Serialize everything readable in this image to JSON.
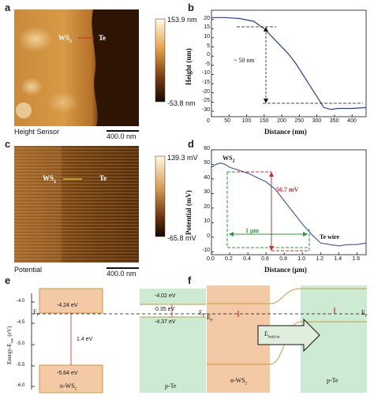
{
  "panels": {
    "a": {
      "letter": "a",
      "material_left": "WS",
      "material_left_sub": "2",
      "material_right": "Te",
      "mode_label": "Height Sensor",
      "scale_bar": "400.0 nm",
      "colorbar_max": "153.9 nm",
      "colorbar_min": "-53.8 nm"
    },
    "b": {
      "letter": "b",
      "ylabel": "Height (nm)",
      "xlabel": "Distance (nm)",
      "annotation": "~ 50 nm",
      "xticks": [
        "0",
        "50",
        "100",
        "150",
        "200",
        "250",
        "300",
        "350",
        "400"
      ],
      "yticks": [
        "20",
        "15",
        "10",
        "5",
        "0",
        "-5",
        "-10",
        "-15",
        "-20",
        "-25",
        "-30"
      ]
    },
    "c": {
      "letter": "c",
      "material_left": "WS",
      "material_left_sub": "2",
      "material_right": "Te",
      "mode_label": "Potential",
      "scale_bar": "400.0 nm",
      "colorbar_max": "139.3 mV",
      "colorbar_min": "-65.8 mV"
    },
    "d": {
      "letter": "d",
      "ylabel": "Potential (mV)",
      "xlabel": "Distance (μm)",
      "label_ws2": "WS",
      "label_ws2_sub": "2",
      "annotation_mv": "56.7 mV",
      "annotation_um": "1 μm",
      "label_te": "Te wire",
      "xticks": [
        "0.0",
        "0.2",
        "0.4",
        "0.6",
        "0.8",
        "1.0",
        "1.2",
        "1.4",
        "1.6"
      ],
      "yticks": [
        "60",
        "50",
        "40",
        "30",
        "20",
        "10",
        "0",
        "-10"
      ]
    },
    "e": {
      "letter": "e",
      "ylabel": "Energy-E",
      "ylabel_sub": "vac",
      "ylabel_unit": "(eV)",
      "yticks": [
        "-4.0",
        "-4.5",
        "-5.0",
        "-5.5",
        "-6.0"
      ],
      "ws2_cb": "-4.24 eV",
      "ws2_vb": "-5.64 eV",
      "gap": "1.4 eV",
      "te_cb": "-4.02 eV",
      "te_offset": "0.35 eV",
      "te_fermi": "-4.37 eV",
      "ef": "E",
      "ef_sub": "F",
      "left_name": "n-WS",
      "left_name_sub": "2",
      "right_name": "p-Te"
    },
    "f": {
      "letter": "f",
      "ef": "E",
      "ef_sub": "F",
      "field_label": "E",
      "field_sub": "built-in",
      "left_name": "n-WS",
      "left_name_sub": "2",
      "right_name": "p-Te"
    }
  },
  "colors": {
    "curve": "#2b3d9b",
    "red_dash": "#d3282b",
    "green_dash": "#2f9a3a",
    "ws2_fill": "#f3c9a6",
    "te_fill": "#cdebd2",
    "orange_line": "#c89a3a"
  },
  "chart_data": [
    {
      "type": "line",
      "panel": "b",
      "xlabel": "Distance (nm)",
      "ylabel": "Height (nm)",
      "xlim": [
        0,
        440
      ],
      "ylim": [
        -33,
        25
      ],
      "x": [
        0,
        40,
        80,
        120,
        150,
        180,
        200,
        220,
        240,
        260,
        280,
        300,
        320,
        340,
        360,
        400,
        440
      ],
      "y": [
        21,
        21,
        20.5,
        19,
        15,
        9,
        5,
        1,
        -4,
        -10,
        -16,
        -22,
        -28,
        -29,
        -28.5,
        -28.5,
        -28
      ]
    },
    {
      "type": "line",
      "panel": "d",
      "xlabel": "Distance (μm)",
      "ylabel": "Potential (mV)",
      "xlim": [
        0,
        1.7
      ],
      "ylim": [
        -12,
        60
      ],
      "x": [
        0.0,
        0.05,
        0.1,
        0.15,
        0.2,
        0.3,
        0.4,
        0.5,
        0.6,
        0.7,
        0.8,
        0.9,
        1.0,
        1.1,
        1.2,
        1.3,
        1.4,
        1.5,
        1.6,
        1.7
      ],
      "y": [
        48,
        50,
        51,
        50,
        48,
        46,
        44,
        41,
        38,
        33,
        25,
        17,
        9,
        2,
        -4,
        -5,
        -6,
        -5,
        -5,
        -4
      ]
    }
  ]
}
